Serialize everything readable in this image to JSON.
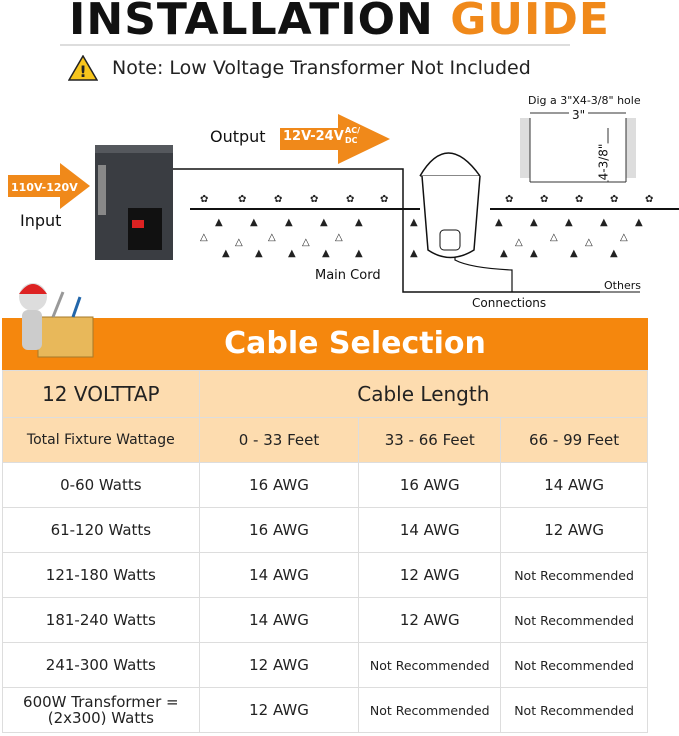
{
  "header": {
    "title_black": "INSTALLATION",
    "title_orange": "GUIDE",
    "note": "Note: Low Voltage Transformer Not Included",
    "accent": "#f0891a"
  },
  "diagram": {
    "input_voltage": "110V-120V",
    "input_label": "Input",
    "output_label": "Output",
    "output_voltage": "12V-24V",
    "output_type_top": "AC/",
    "output_type_bottom": "DC",
    "main_cord": "Main Cord",
    "connections": "Connections",
    "others": "Others",
    "hole_note": "Dig a 3\"X4-3/8\" hole",
    "hole_width": "3\"",
    "hole_depth": "4-3/8\""
  },
  "table": {
    "banner": "Cable Selection",
    "corner": "12 VOLTTAP",
    "group_header": "Cable Length",
    "row_header": "Total Fixture Wattage",
    "columns": [
      "0 - 33 Feet",
      "33 - 66 Feet",
      "66 - 99 Feet"
    ],
    "rows": [
      {
        "label": "0-60 Watts",
        "values": [
          "16 AWG",
          "16 AWG",
          "14 AWG"
        ]
      },
      {
        "label": "61-120 Watts",
        "values": [
          "16 AWG",
          "14 AWG",
          "12 AWG"
        ]
      },
      {
        "label": "121-180 Watts",
        "values": [
          "14 AWG",
          "12 AWG",
          "Not Recommended"
        ]
      },
      {
        "label": "181-240 Watts",
        "values": [
          "14 AWG",
          "12 AWG",
          "Not Recommended"
        ]
      },
      {
        "label": "241-300 Watts",
        "values": [
          "12 AWG",
          "Not Recommended",
          "Not Recommended"
        ]
      },
      {
        "label": "600W Transformer =(2x300) Watts",
        "values": [
          "12 AWG",
          "Not Recommended",
          "Not Recommended"
        ]
      }
    ]
  }
}
